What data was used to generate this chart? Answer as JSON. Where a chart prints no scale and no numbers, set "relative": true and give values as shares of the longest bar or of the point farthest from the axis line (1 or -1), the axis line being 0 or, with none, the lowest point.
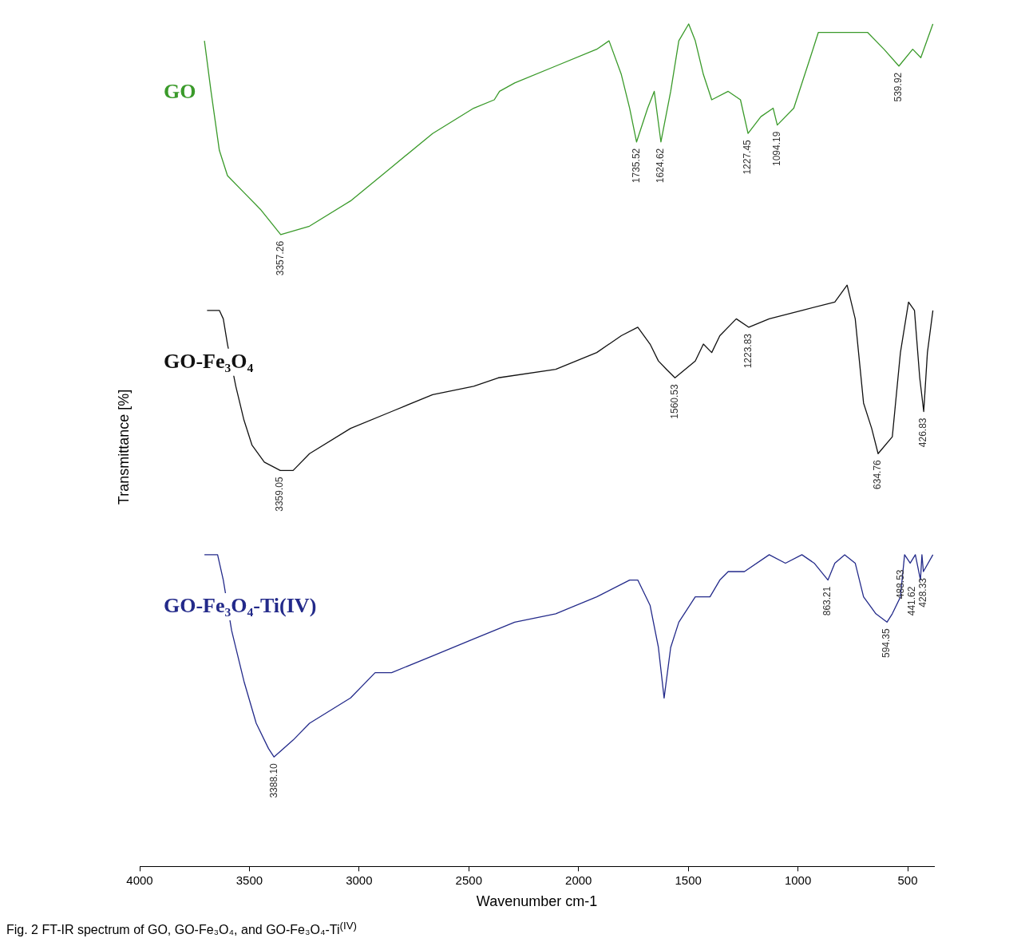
{
  "chart_data": {
    "type": "line",
    "relative": true,
    "xlabel": "Wavenumber cm-1",
    "ylabel": "Transmittance [%]",
    "xlim": [
      4000,
      380
    ],
    "xticks": [
      4000,
      3500,
      3000,
      2500,
      2000,
      1500,
      1000,
      500
    ],
    "tick_labels": "x",
    "grid": false,
    "legend": false,
    "marker": "none",
    "line_style": "solid",
    "series": [
      {
        "name": "GO",
        "color": "#3a9a2a",
        "x": [
          3705,
          3675,
          3637,
          3600,
          3525,
          3450,
          3357.26,
          3226,
          3039,
          2852,
          2665,
          2478,
          2384,
          2360,
          2291,
          2104,
          1917,
          1861,
          1805,
          1767,
          1735.52,
          1685,
          1655,
          1624.62,
          1580,
          1543,
          1498,
          1468,
          1431,
          1393,
          1318,
          1262,
          1227.45,
          1169,
          1113,
          1094.19,
          1019,
          944,
          907,
          795,
          683,
          608,
          539.92,
          477,
          440,
          385
        ],
        "values": [
          0.98,
          0.92,
          0.85,
          0.82,
          0.8,
          0.78,
          0.75,
          0.76,
          0.79,
          0.83,
          0.87,
          0.9,
          0.91,
          0.92,
          0.93,
          0.95,
          0.97,
          0.98,
          0.94,
          0.9,
          0.86,
          0.9,
          0.92,
          0.86,
          0.92,
          0.98,
          1.0,
          0.98,
          0.94,
          0.91,
          0.92,
          0.91,
          0.87,
          0.89,
          0.9,
          0.88,
          0.9,
          0.96,
          0.99,
          0.99,
          0.99,
          0.97,
          0.95,
          0.97,
          0.96,
          1.0
        ]
      },
      {
        "name": "GO-Fe₃O₄",
        "color": "#111111",
        "x": [
          3693,
          3637,
          3619,
          3600,
          3562,
          3525,
          3488,
          3432,
          3359.05,
          3301,
          3226,
          3039,
          2852,
          2665,
          2478,
          2366,
          2104,
          1917,
          1805,
          1730,
          1674,
          1636,
          1599,
          1560.53,
          1468,
          1431,
          1393,
          1356,
          1281,
          1223.83,
          1131,
          982,
          832,
          776,
          739,
          701,
          664,
          634.76,
          570,
          533,
          496,
          469,
          445,
          426.83,
          410,
          385
        ],
        "values": [
          0.66,
          0.66,
          0.65,
          0.62,
          0.57,
          0.53,
          0.5,
          0.48,
          0.47,
          0.47,
          0.49,
          0.52,
          0.54,
          0.56,
          0.57,
          0.58,
          0.59,
          0.61,
          0.63,
          0.64,
          0.62,
          0.6,
          0.59,
          0.58,
          0.6,
          0.62,
          0.61,
          0.63,
          0.65,
          0.64,
          0.65,
          0.66,
          0.67,
          0.69,
          0.65,
          0.55,
          0.52,
          0.49,
          0.51,
          0.61,
          0.67,
          0.66,
          0.58,
          0.54,
          0.61,
          0.66
        ]
      },
      {
        "name": "GO-Fe₃O₄-Ti(IV)",
        "color": "#232a8a",
        "x": [
          3705,
          3645,
          3619,
          3581,
          3525,
          3469,
          3413,
          3388.1,
          3301,
          3226,
          3039,
          2927,
          2852,
          2665,
          2478,
          2291,
          2104,
          1917,
          1767,
          1730,
          1674,
          1636,
          1610,
          1580,
          1543,
          1468,
          1431,
          1401,
          1356,
          1318,
          1244,
          1131,
          1057,
          982,
          926,
          863.21,
          832,
          787,
          739,
          701,
          645,
          594.35,
          570,
          533,
          514,
          488.53,
          465,
          441.62,
          435,
          428.33,
          385
        ],
        "values": [
          0.37,
          0.37,
          0.34,
          0.28,
          0.22,
          0.17,
          0.14,
          0.13,
          0.15,
          0.17,
          0.2,
          0.23,
          0.23,
          0.25,
          0.27,
          0.29,
          0.3,
          0.32,
          0.34,
          0.34,
          0.31,
          0.26,
          0.2,
          0.26,
          0.29,
          0.32,
          0.32,
          0.32,
          0.34,
          0.35,
          0.35,
          0.37,
          0.36,
          0.37,
          0.36,
          0.34,
          0.36,
          0.37,
          0.36,
          0.32,
          0.3,
          0.29,
          0.3,
          0.32,
          0.37,
          0.36,
          0.37,
          0.34,
          0.37,
          0.35,
          0.37
        ]
      }
    ],
    "annotations": [
      {
        "text": "3357.26",
        "x": 3357.26,
        "y": 0.75
      },
      {
        "text": "1735.52",
        "x": 1735.52,
        "y": 0.86
      },
      {
        "text": "1624.62",
        "x": 1624.62,
        "y": 0.86
      },
      {
        "text": "1227.45",
        "x": 1227.45,
        "y": 0.87
      },
      {
        "text": "1094.19",
        "x": 1094.19,
        "y": 0.88
      },
      {
        "text": "539.92",
        "x": 539.92,
        "y": 0.95
      },
      {
        "text": "3359.05",
        "x": 3359.05,
        "y": 0.47
      },
      {
        "text": "1560.53",
        "x": 1560.53,
        "y": 0.58
      },
      {
        "text": "1223.83",
        "x": 1223.83,
        "y": 0.64
      },
      {
        "text": "634.76",
        "x": 634.76,
        "y": 0.49
      },
      {
        "text": "426.83",
        "x": 426.83,
        "y": 0.54
      },
      {
        "text": "3388.10",
        "x": 3388.1,
        "y": 0.13
      },
      {
        "text": "863.21",
        "x": 863.21,
        "y": 0.34
      },
      {
        "text": "594.35",
        "x": 594.35,
        "y": 0.29
      },
      {
        "text": "488.53",
        "x": 488.53,
        "y": 0.36
      },
      {
        "text": "441.62",
        "x": 441.62,
        "y": 0.34
      },
      {
        "text": "428.33",
        "x": 428.33,
        "y": 0.35
      },
      "Fig. 2 FT-IR spectrum of GO, GO-Fe₃O₄, and GO-Fe₃O₄-Ti$^{(IV)}$"
    ]
  }
}
